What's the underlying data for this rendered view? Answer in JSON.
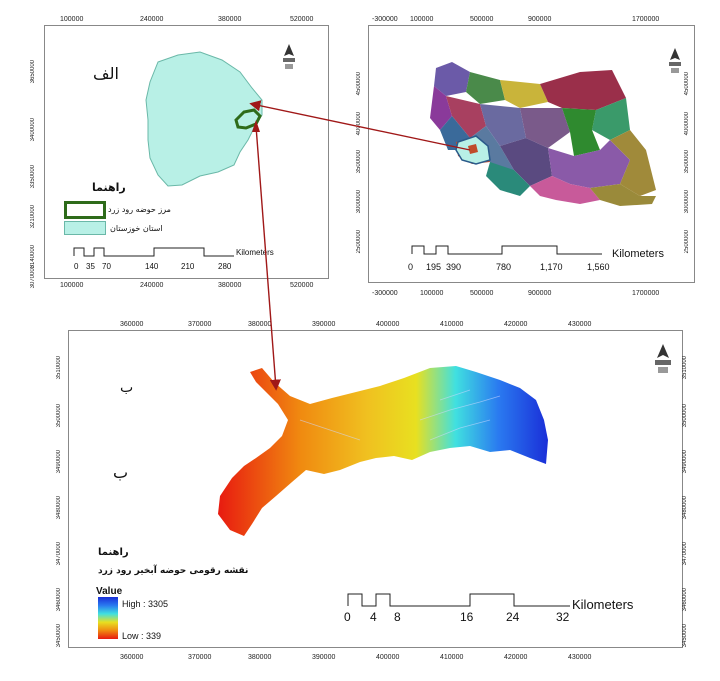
{
  "panel_a": {
    "label": "الف",
    "legend_title": "راهنما",
    "legend_items": [
      {
        "label": "مرز حوضه رود زرد",
        "color": "#2e6b1a"
      },
      {
        "label": "استان خوزستان",
        "color": "#b8f0e6"
      }
    ],
    "scale_ticks": [
      "0",
      "35",
      "70",
      "140",
      "210",
      "280"
    ],
    "scale_unit": "Kilometers",
    "x_ticks": [
      "100000",
      "240000",
      "380000",
      "520000"
    ],
    "y_ticks": [
      "3650000",
      "3400000",
      "3350000",
      "3210000",
      "3140000",
      "3070000"
    ]
  },
  "panel_iran": {
    "scale_ticks": [
      "0",
      "195",
      "390",
      "780",
      "1,170",
      "1,560"
    ],
    "scale_unit": "Kilometers",
    "x_ticks": [
      "-300000",
      "100000",
      "500000",
      "900000",
      "1700000"
    ],
    "y_ticks": [
      "4500000",
      "4000000",
      "3500000",
      "3000000",
      "2500000"
    ]
  },
  "panel_b": {
    "label_upper": "ب",
    "label_lower": "ب",
    "legend_title": "راهنما",
    "legend_subtitle": "نقشه رقومی حوضه آبخیر رود زرد",
    "value_title": "Value",
    "high_label": "High : 3305",
    "low_label": "Low : 339",
    "elevation_high": 3305,
    "elevation_low": 339,
    "scale_ticks": [
      "0",
      "4",
      "8",
      "16",
      "24",
      "32"
    ],
    "scale_unit": "Kilometers",
    "x_ticks": [
      "360000",
      "370000",
      "380000",
      "390000",
      "400000",
      "410000",
      "420000",
      "430000"
    ],
    "y_ticks": [
      "3510000",
      "3500000",
      "3490000",
      "3480000",
      "3470000",
      "3460000",
      "3450000"
    ]
  },
  "colors": {
    "khuzestan_fill": "#b8f0e6",
    "basin_outline": "#2e6b1a",
    "arrow": "#a01818",
    "ramp_high": "#1a2fd8",
    "ramp_low": "#e81a10"
  },
  "north_arrow_letter": "N"
}
